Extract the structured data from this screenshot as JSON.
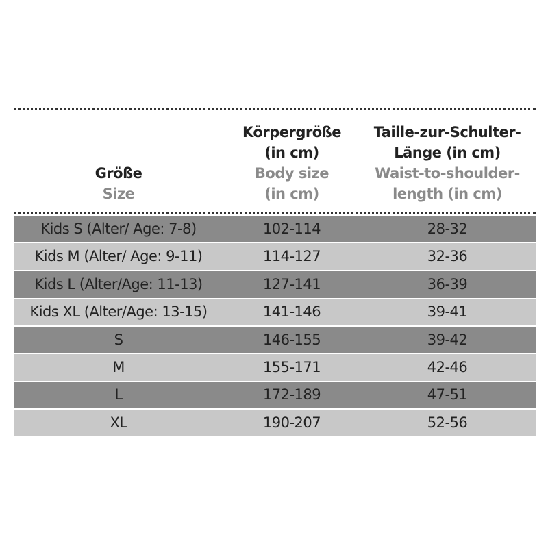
{
  "table": {
    "header": [
      {
        "de": [
          "Größe"
        ],
        "en": [
          "Size"
        ]
      },
      {
        "de": [
          "Körpergröße",
          "(in cm)"
        ],
        "en": [
          "Body size",
          "(in cm)"
        ]
      },
      {
        "de": [
          "Taille-zur-Schulter-",
          "Länge (in cm)"
        ],
        "en": [
          "Waist-to-shoulder-",
          "length (in cm)"
        ]
      }
    ],
    "rows": [
      [
        "Kids S (Alter/ Age: 7-8)",
        "102-114",
        "28-32"
      ],
      [
        "Kids M (Alter/ Age: 9-11)",
        "114-127",
        "32-36"
      ],
      [
        "Kids L (Alter/Age: 11-13)",
        "127-141",
        "36-39"
      ],
      [
        "Kids XL (Alter/Age: 13-15)",
        "141-146",
        "39-41"
      ],
      [
        "S",
        "146-155",
        "39-42"
      ],
      [
        "M",
        "155-171",
        "42-46"
      ],
      [
        "L",
        "172-189",
        "47-51"
      ],
      [
        "XL",
        "190-207",
        "52-56"
      ]
    ]
  }
}
